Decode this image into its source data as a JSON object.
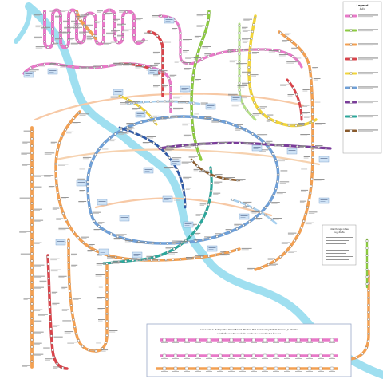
{
  "map": {
    "legend_title": "Legend",
    "legend_subtitle": "ສັນລັກ",
    "bottom_panel_title": "Line Under & Metropolitan Rapid Transit \"Thaksin Pin\" and \"Sealayati Ret\" Thailand Jo Atlantic",
    "bottom_panel_subtitle": "รถไฟฟ้าเชื่อมสนามบินและรถไฟฟ้า \"สายสีทอง\" และ \"สายสีน้ำเงิน\" ในอนาคต",
    "right_panel_title": "Interchange notes",
    "right_panel_subtitle": "ข้อมูลเพิ่มเติม",
    "colors": {
      "river": "#9fdff0",
      "pink": "#e879c8",
      "orange": "#f3a052",
      "red": "#d9434a",
      "green": "#8ccb3f",
      "lightgreen": "#b6e08a",
      "yellow": "#f2d53a",
      "blue": "#6fa0d8",
      "darkblue": "#2f5aa8",
      "purple": "#7a3c9a",
      "teal": "#2aa79b",
      "brown": "#8a5a2b",
      "lightblue": "#a8d0ef",
      "gray": "#aaaaaa",
      "magenta": "#c2268c"
    },
    "legend_items": [
      "line-pink",
      "line-green",
      "line-orange",
      "line-red",
      "line-yellow",
      "line-blue",
      "line-purple",
      "line-teal",
      "line-brown"
    ]
  }
}
